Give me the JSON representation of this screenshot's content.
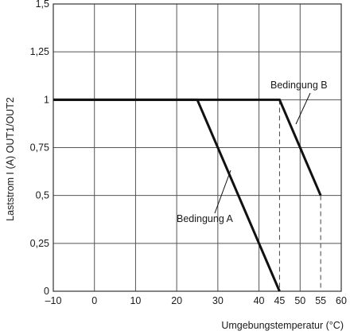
{
  "chart_data": {
    "type": "line",
    "title": "",
    "xlabel": "Umgebungstemperatur (°C)",
    "ylabel": "Laststrom I (A) OUT1/OUT2",
    "xlim": [
      -10,
      60
    ],
    "ylim": [
      0,
      1.5
    ],
    "x_ticks": [
      {
        "value": -10,
        "label": "–10"
      },
      {
        "value": 0,
        "label": "0"
      },
      {
        "value": 10,
        "label": "10"
      },
      {
        "value": 20,
        "label": "20"
      },
      {
        "value": 30,
        "label": "30"
      },
      {
        "value": 40,
        "label": "40"
      },
      {
        "value": 45,
        "label": "45"
      },
      {
        "value": 50,
        "label": "50"
      },
      {
        "value": 55,
        "label": "55"
      },
      {
        "value": 60,
        "label": "60"
      }
    ],
    "y_ticks": [
      {
        "value": 0,
        "label": "0"
      },
      {
        "value": 0.25,
        "label": "0,25"
      },
      {
        "value": 0.5,
        "label": "0,5"
      },
      {
        "value": 0.75,
        "label": "0,75"
      },
      {
        "value": 1,
        "label": "1"
      },
      {
        "value": 1.25,
        "label": "1,25"
      },
      {
        "value": 1.5,
        "label": "1,5"
      }
    ],
    "grid": true,
    "series": [
      {
        "name": "Bedingung A",
        "x": [
          -10,
          25,
          45
        ],
        "y": [
          1,
          1,
          0
        ]
      },
      {
        "name": "Bedingung B",
        "x": [
          -10,
          45,
          55
        ],
        "y": [
          1,
          1,
          0.5
        ]
      }
    ],
    "reference_lines": [
      {
        "x": 45,
        "y_from": 0,
        "y_to": 1,
        "style": "dashed"
      },
      {
        "x": 55,
        "y_from": 0,
        "y_to": 0.5,
        "style": "dashed"
      }
    ],
    "annotations": [
      {
        "text": "Bedingung A",
        "points_to_series": 0
      },
      {
        "text": "Bedingung B",
        "points_to_series": 1
      }
    ]
  }
}
